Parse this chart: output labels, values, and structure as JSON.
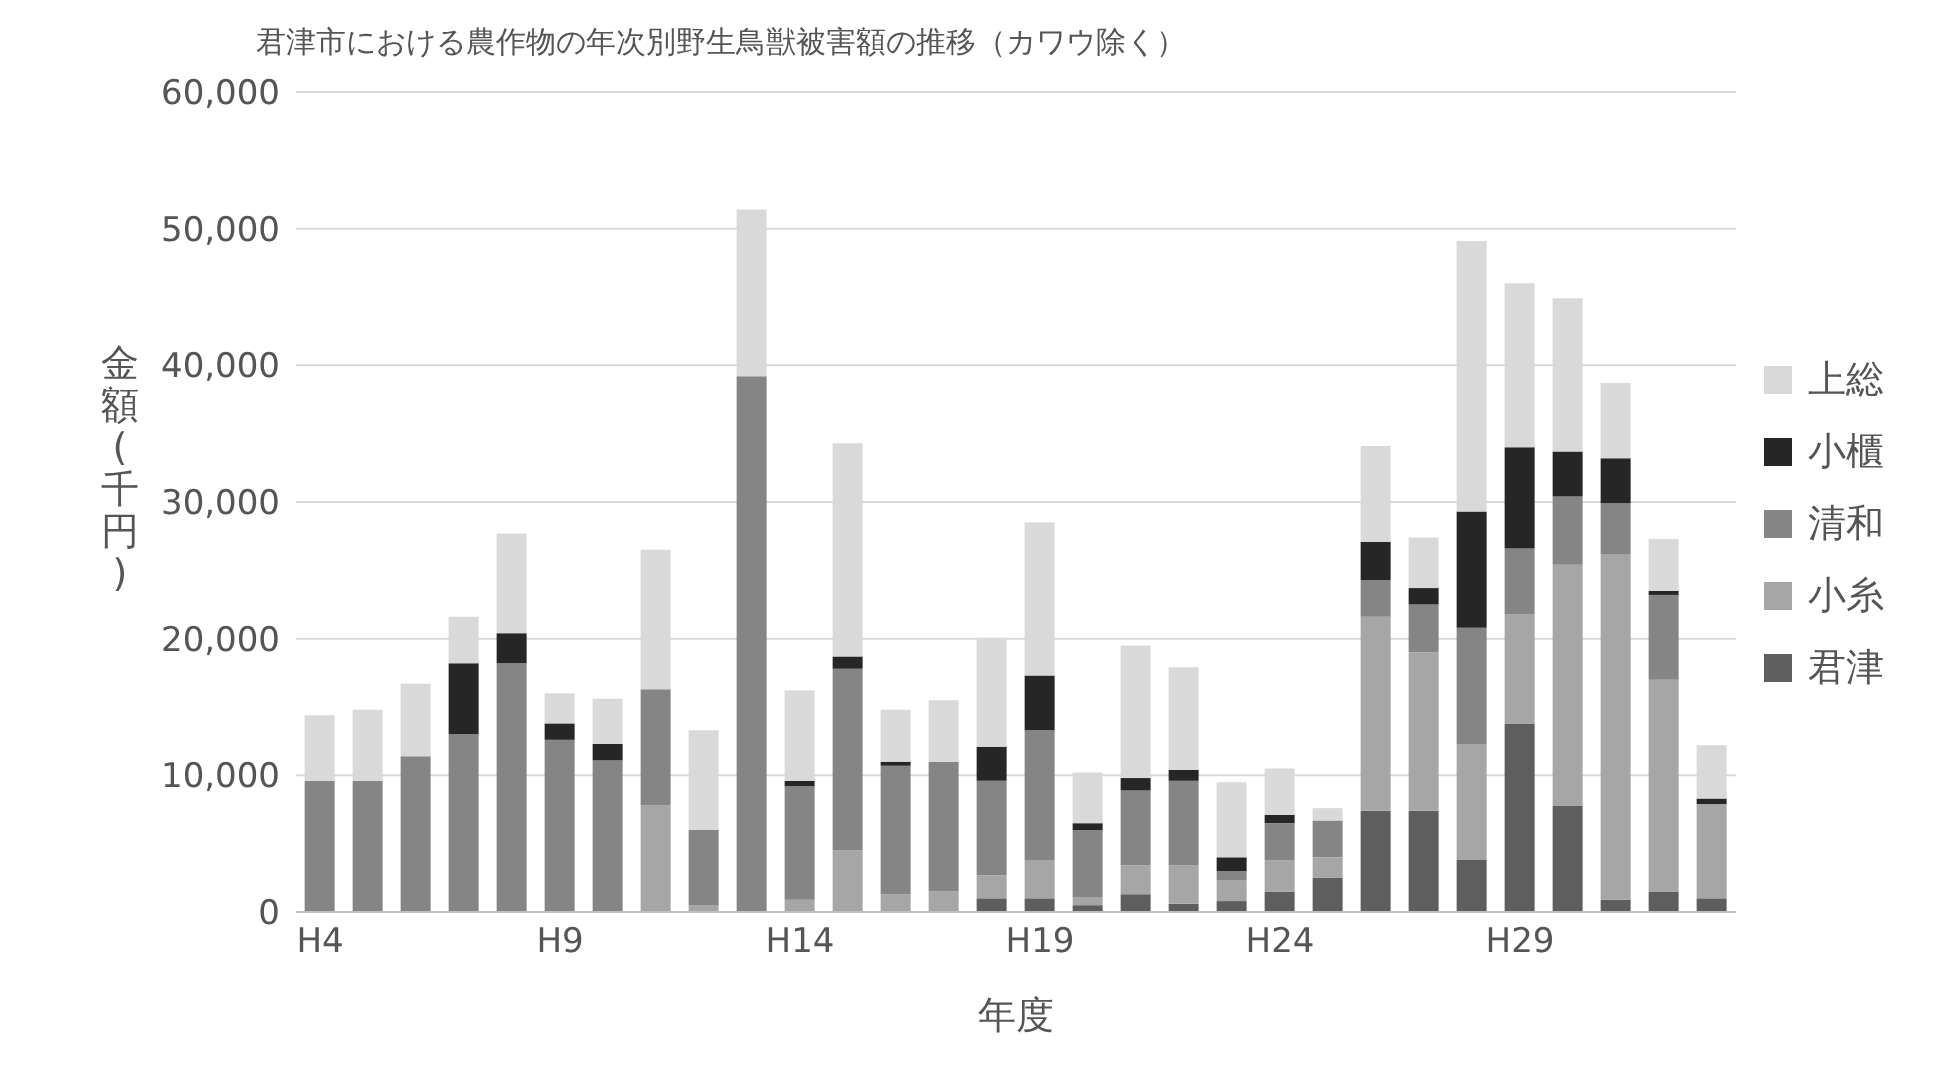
{
  "chart_data": {
    "type": "bar",
    "title": "君津市における農作物の年次別野生鳥獣被害額の推移（カワウ除く）",
    "xlabel": "年度",
    "ylabel": "金額(千円)",
    "stacked": true,
    "legend": "right",
    "grid": "y",
    "categories": [
      "H4",
      null,
      null,
      null,
      null,
      "H9",
      null,
      null,
      null,
      null,
      "H14",
      null,
      null,
      null,
      null,
      "H19",
      null,
      null,
      null,
      null,
      "H24",
      null,
      null,
      null,
      null,
      "H29",
      null,
      null,
      null,
      null
    ],
    "ylim": [
      0,
      60000
    ],
    "yticks": [
      {
        "value": 0,
        "label": "0"
      },
      {
        "value": 10000,
        "label": "10,000"
      },
      {
        "value": 20000,
        "label": "20,000"
      },
      {
        "value": 30000,
        "label": "30,000"
      },
      {
        "value": 40000,
        "label": "40,000"
      },
      {
        "value": 50000,
        "label": "50,000"
      },
      {
        "value": 60000,
        "label": "60,000"
      }
    ],
    "series": [
      {
        "name": "君津",
        "color": "#5e5e5e",
        "values": [
          0,
          0,
          0,
          0,
          0,
          0,
          0,
          0,
          0,
          0,
          0,
          0,
          0,
          0,
          1000,
          1000,
          500,
          1300,
          600,
          800,
          1500,
          2500,
          7400,
          7400,
          3800,
          13800,
          7800,
          900,
          1500,
          1000
        ]
      },
      {
        "name": "小糸",
        "color": "#a6a6a6",
        "values": [
          0,
          0,
          0,
          0,
          0,
          0,
          0,
          7800,
          500,
          0,
          900,
          4500,
          1300,
          1500,
          1700,
          2800,
          600,
          2100,
          2800,
          1500,
          2300,
          1500,
          14200,
          11600,
          8500,
          8000,
          17600,
          25300,
          15500,
          6900
        ]
      },
      {
        "name": "清和",
        "color": "#858585",
        "values": [
          9600,
          9600,
          11400,
          13000,
          18200,
          12600,
          11100,
          8500,
          5500,
          39200,
          8300,
          13300,
          9400,
          9500,
          6900,
          9500,
          4900,
          5500,
          6200,
          700,
          2700,
          2700,
          2700,
          3500,
          8500,
          4800,
          5000,
          3700,
          6200,
          0
        ]
      },
      {
        "name": "小櫃",
        "color": "#262626",
        "values": [
          0,
          0,
          0,
          5200,
          2200,
          1200,
          1200,
          0,
          0,
          0,
          400,
          900,
          300,
          0,
          2500,
          4000,
          500,
          900,
          800,
          1000,
          600,
          0,
          2800,
          1200,
          8500,
          7400,
          3300,
          3300,
          300,
          400
        ]
      },
      {
        "name": "上総",
        "color": "#d9d9d9",
        "values": [
          4800,
          5200,
          5300,
          3400,
          7300,
          2200,
          3300,
          10200,
          7300,
          12200,
          6600,
          15600,
          3800,
          4500,
          7900,
          11200,
          3700,
          9700,
          7500,
          5500,
          3400,
          900,
          7000,
          3700,
          19800,
          12000,
          11200,
          5500,
          3800,
          3900
        ]
      }
    ]
  }
}
